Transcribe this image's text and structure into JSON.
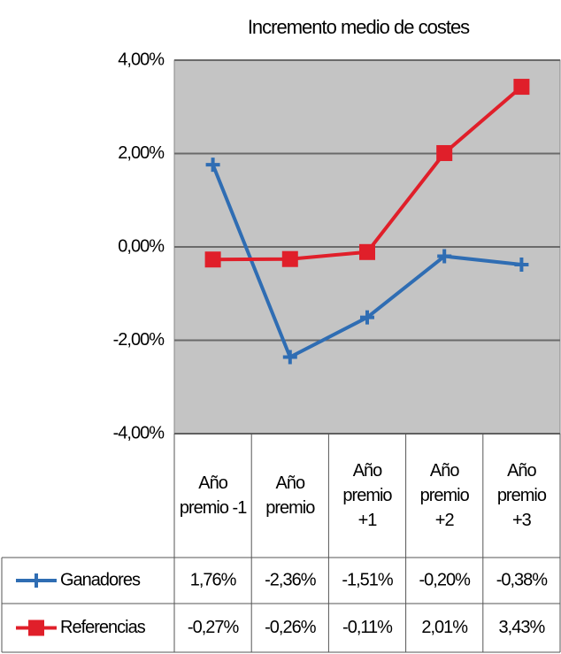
{
  "chart_data": {
    "type": "line",
    "title": "Incremento medio de costes",
    "categories": [
      "Año premio -1",
      "Año premio",
      "Año premio +1",
      "Año premio +2",
      "Año premio +3"
    ],
    "series": [
      {
        "name": "Ganadores",
        "color": "#2f6db3",
        "values": [
          1.76,
          -2.36,
          -1.51,
          -0.2,
          -0.38
        ],
        "value_labels": [
          "1,76%",
          "-2,36%",
          "-1,51%",
          "-0,20%",
          "-0,38%"
        ]
      },
      {
        "name": "Referencias",
        "color": "#e01f2a",
        "values": [
          -0.27,
          -0.26,
          -0.11,
          2.01,
          3.43
        ],
        "value_labels": [
          "-0,27%",
          "-0,26%",
          "-0,11%",
          "2,01%",
          "3,43%"
        ]
      }
    ],
    "ylim": [
      -4,
      4
    ],
    "yticks": [
      {
        "value": -4,
        "label": "-4,00%"
      },
      {
        "value": -2,
        "label": "-2,00%"
      },
      {
        "value": 0,
        "label": "0,00%"
      },
      {
        "value": 2,
        "label": "2,00%"
      },
      {
        "value": 4,
        "label": "4,00%"
      }
    ],
    "grid": true
  }
}
